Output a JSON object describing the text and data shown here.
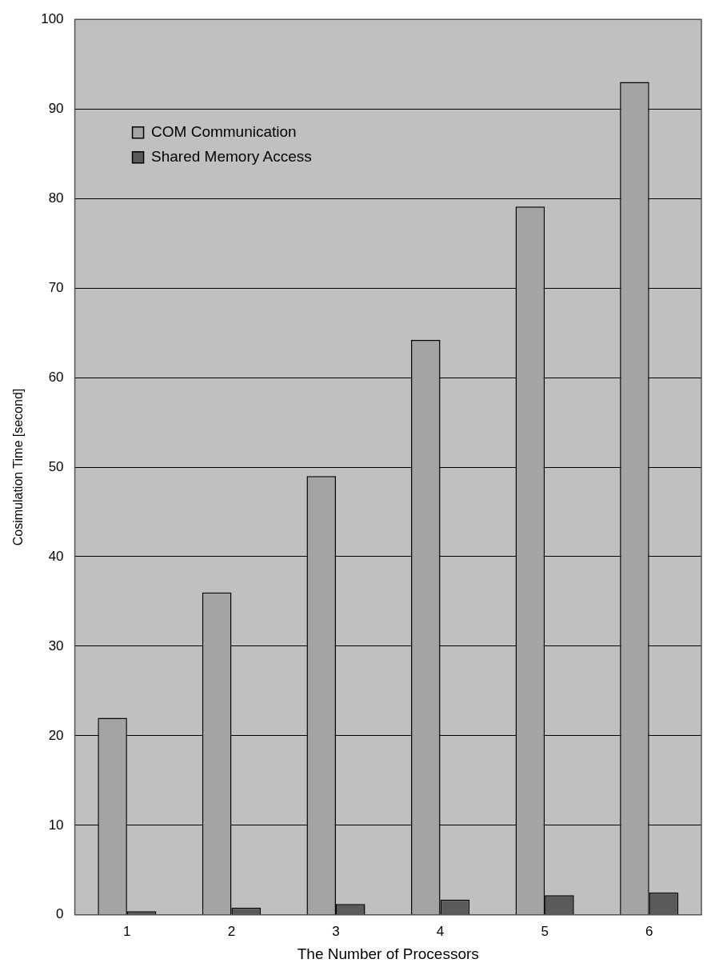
{
  "chart_data": {
    "type": "bar",
    "xlabel": "The Number of Processors",
    "ylabel": "Cosimulation Time [second]",
    "categories": [
      "1",
      "2",
      "3",
      "4",
      "5",
      "6"
    ],
    "series": [
      {
        "name": "COM Communication",
        "color": "#a4a4a4",
        "values": [
          22,
          36,
          49,
          64.2,
          79.1,
          93
        ]
      },
      {
        "name": "Shared Memory Access",
        "color": "#5a5a5a",
        "values": [
          0.4,
          0.8,
          1.2,
          1.7,
          2.2,
          2.5
        ]
      }
    ],
    "ylim": [
      0,
      100
    ],
    "yticks": [
      0,
      10,
      20,
      30,
      40,
      50,
      60,
      70,
      80,
      90,
      100
    ],
    "grid": "y",
    "legend": "top left"
  }
}
